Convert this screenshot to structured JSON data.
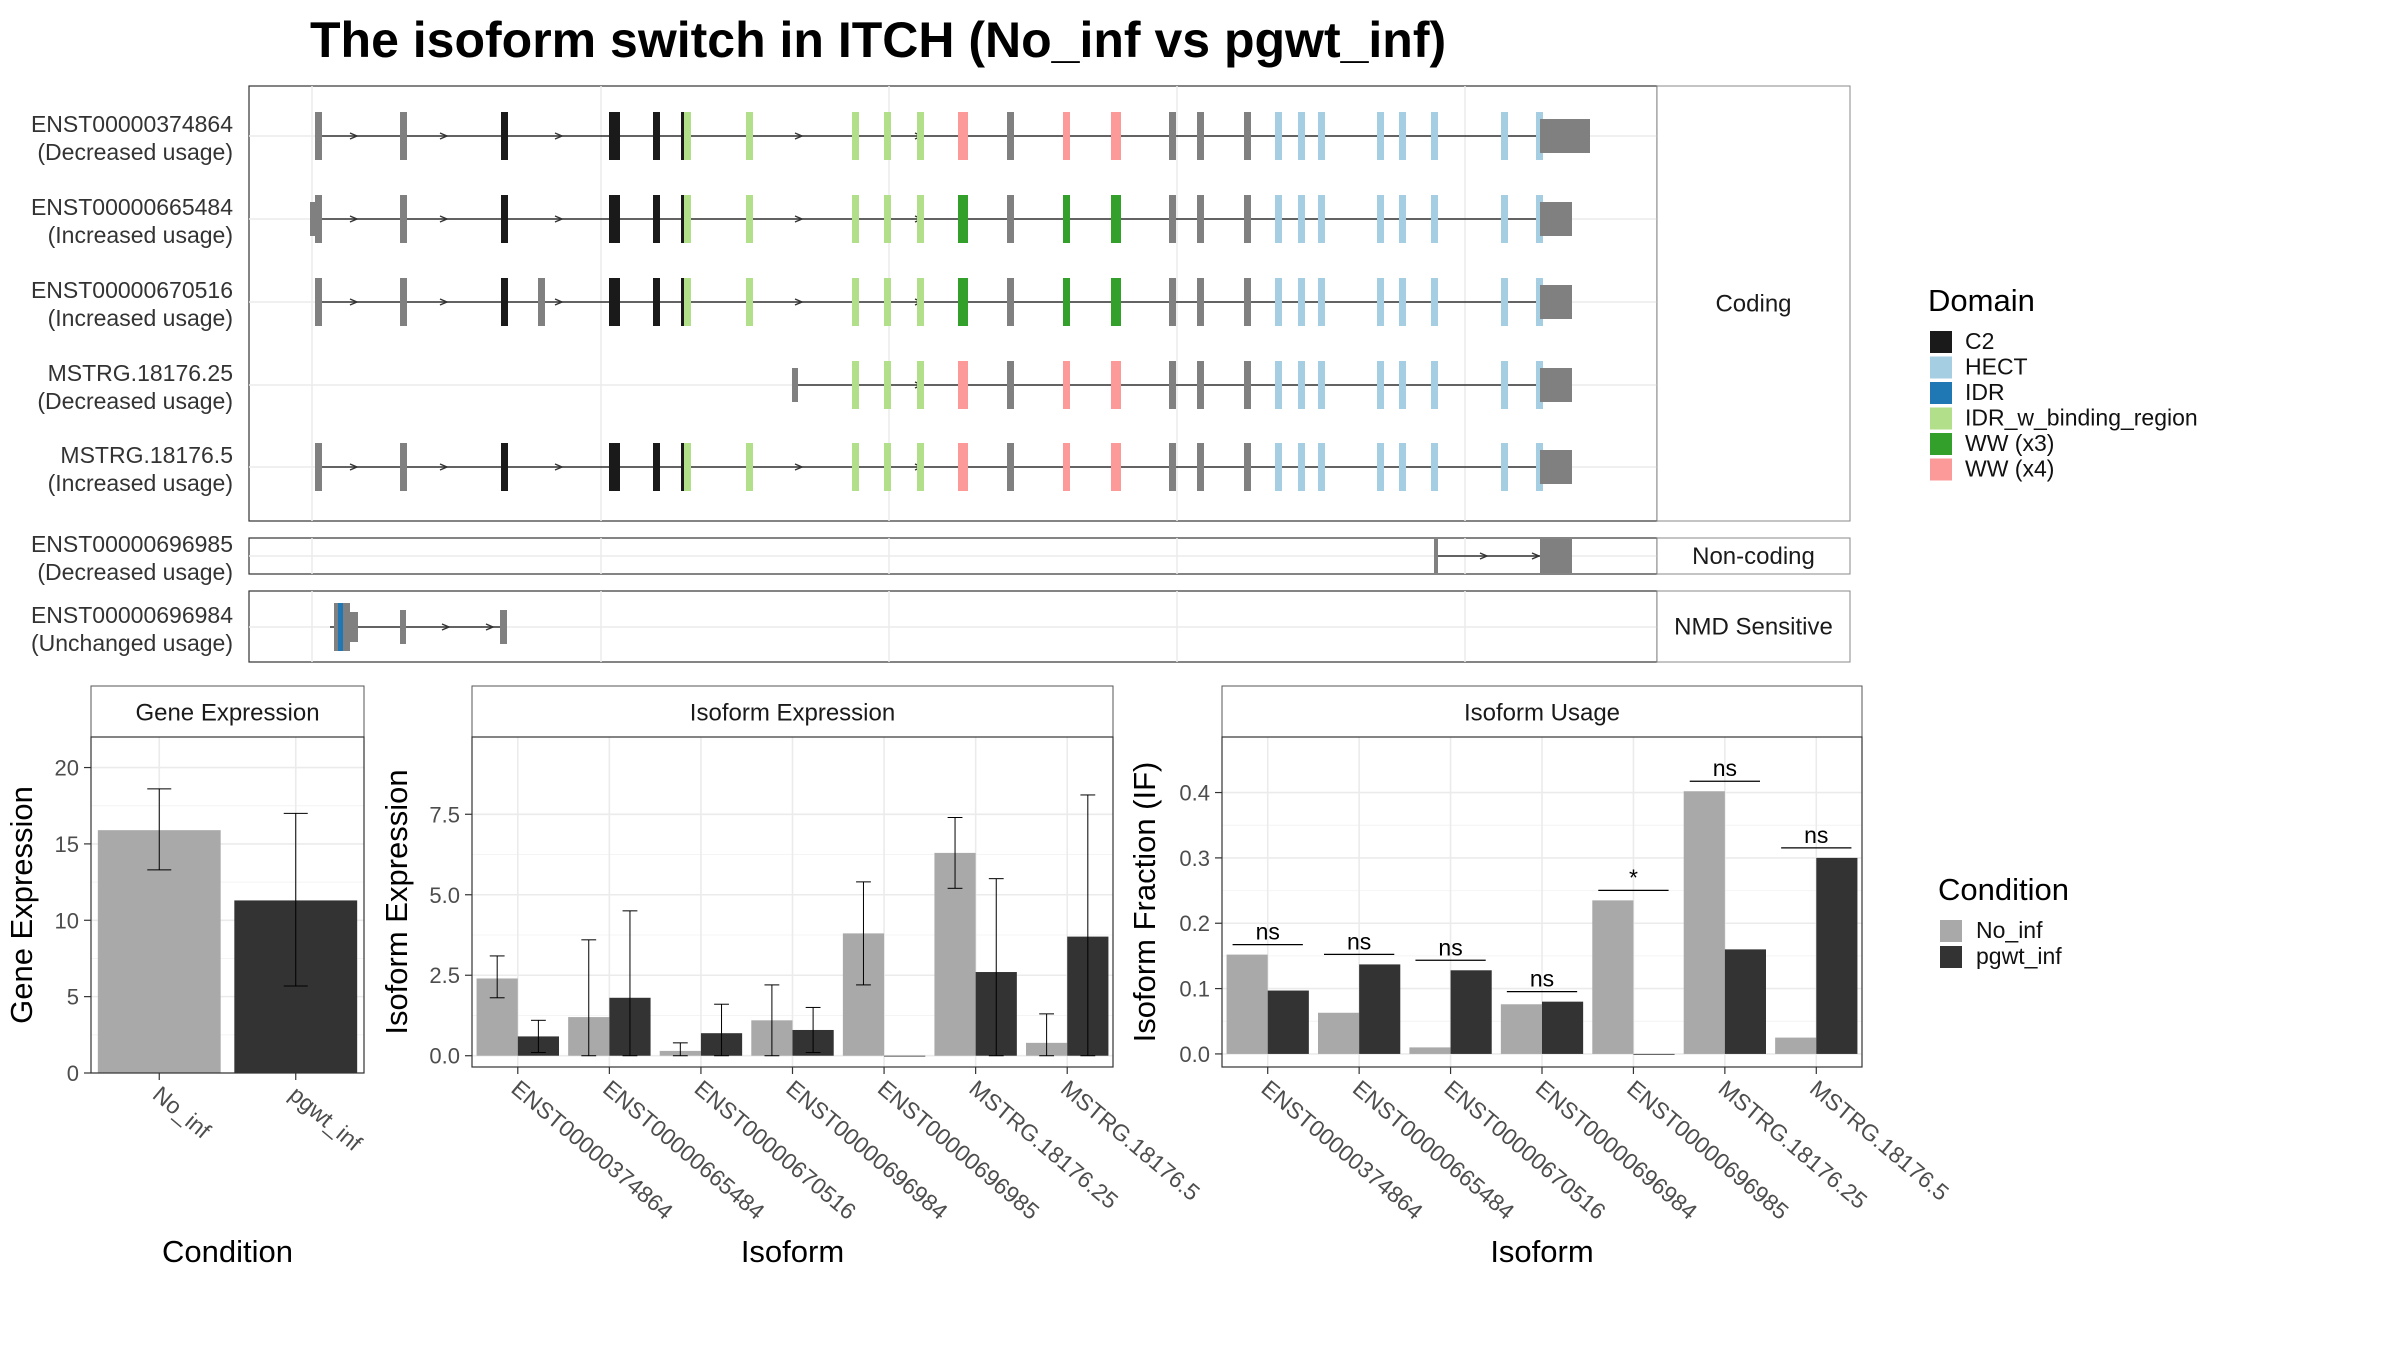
{
  "title": "The isoform switch in ITCH (No_inf vs pgwt_inf)",
  "colors": {
    "C2": "#1a1a1a",
    "HECT": "#a6cee3",
    "IDR": "#1f78b4",
    "IDR_w_binding_region": "#b2df8a",
    "WW (x3)": "#33a02c",
    "WW (x4)": "#fb9a99",
    "exon": "#808080",
    "no_inf": "#a9a9a9",
    "pgwt_inf": "#333333"
  },
  "domain_legend": {
    "title": "Domain",
    "items": [
      "C2",
      "HECT",
      "IDR",
      "IDR_w_binding_region",
      "WW (x3)",
      "WW (x4)"
    ]
  },
  "condition_legend": {
    "title": "Condition",
    "items": [
      "No_inf",
      "pgwt_inf"
    ]
  },
  "structure_panels": [
    {
      "strip": "Coding",
      "transcripts": [
        {
          "id": "ENST00000374864",
          "usage": "(Decreased usage)"
        },
        {
          "id": "ENST00000665484",
          "usage": "(Increased usage)"
        },
        {
          "id": "ENST00000670516",
          "usage": "(Increased usage)"
        },
        {
          "id": "MSTRG.18176.25",
          "usage": "(Decreased usage)"
        },
        {
          "id": "MSTRG.18176.5",
          "usage": "(Increased usage)"
        }
      ]
    },
    {
      "strip": "Non-coding",
      "transcripts": [
        {
          "id": "ENST00000696985",
          "usage": "(Decreased usage)"
        }
      ]
    },
    {
      "strip": "NMD Sensitive",
      "transcripts": [
        {
          "id": "ENST00000696984",
          "usage": "(Unchanged usage)"
        }
      ]
    }
  ],
  "chart_data": [
    {
      "type": "bar",
      "title": "Gene Expression",
      "xlabel": "Condition",
      "ylabel": "Gene Expression",
      "categories": [
        "No_inf",
        "pgwt_inf"
      ],
      "values": [
        15.9,
        11.3
      ],
      "error_low": [
        13.3,
        5.7
      ],
      "error_high": [
        18.6,
        17.0
      ],
      "ylim": [
        0,
        22
      ],
      "yticks": [
        0,
        5,
        10,
        15,
        20
      ],
      "ytick_labels": [
        "0",
        "5",
        "10",
        "15",
        "20"
      ]
    },
    {
      "type": "bar",
      "title": "Isoform Expression",
      "xlabel": "Isoform",
      "ylabel": "Isoform Expression",
      "categories": [
        "ENST00000374864",
        "ENST00000665484",
        "ENST00000670516",
        "ENST00000696984",
        "ENST00000696985",
        "MSTRG.18176.25",
        "MSTRG.18176.5"
      ],
      "series": [
        {
          "name": "No_inf",
          "values": [
            2.4,
            1.2,
            0.15,
            1.1,
            3.8,
            6.3,
            0.4
          ],
          "error_low": [
            1.8,
            0.0,
            0.0,
            0.0,
            2.2,
            5.2,
            0.0
          ],
          "error_high": [
            3.1,
            3.6,
            0.4,
            2.2,
            5.4,
            7.4,
            1.3
          ]
        },
        {
          "name": "pgwt_inf",
          "values": [
            0.6,
            1.8,
            0.7,
            0.8,
            0.0,
            2.6,
            3.7
          ],
          "error_low": [
            0.1,
            0.0,
            0.0,
            0.1,
            0.0,
            0.0,
            0.0
          ],
          "error_high": [
            1.1,
            4.5,
            1.6,
            1.5,
            0.0,
            5.5,
            8.1
          ]
        }
      ],
      "ylim": [
        -0.35,
        9.9
      ],
      "yticks": [
        0,
        2.5,
        5,
        7.5
      ],
      "ytick_labels": [
        "0.0",
        "2.5",
        "5.0",
        "7.5"
      ]
    },
    {
      "type": "bar",
      "title": "Isoform Usage",
      "xlabel": "Isoform",
      "ylabel": "Isoform Fraction (IF)",
      "categories": [
        "ENST00000374864",
        "ENST00000665484",
        "ENST00000670516",
        "ENST00000696984",
        "ENST00000696985",
        "MSTRG.18176.25",
        "MSTRG.18176.5"
      ],
      "series": [
        {
          "name": "No_inf",
          "values": [
            0.152,
            0.063,
            0.01,
            0.076,
            0.235,
            0.402,
            0.025
          ]
        },
        {
          "name": "pgwt_inf",
          "values": [
            0.097,
            0.137,
            0.128,
            0.08,
            0.0,
            0.16,
            0.3
          ]
        }
      ],
      "significance": [
        "ns",
        "ns",
        "ns",
        "ns",
        "*",
        "ns",
        "ns"
      ],
      "ylim": [
        -0.02,
        0.485
      ],
      "yticks": [
        0,
        0.1,
        0.2,
        0.3,
        0.4
      ],
      "ytick_labels": [
        "0.0",
        "0.1",
        "0.2",
        "0.3",
        "0.4"
      ]
    }
  ]
}
